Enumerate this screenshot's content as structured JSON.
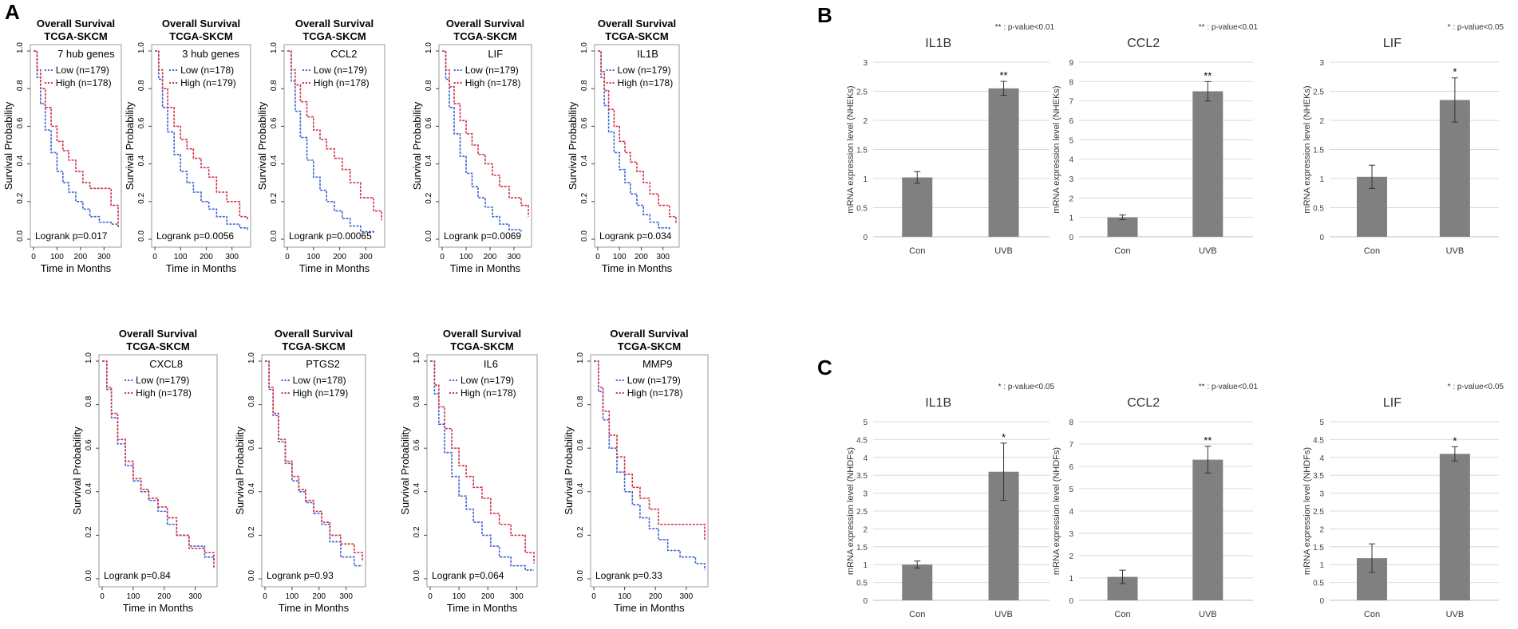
{
  "panel_labels": {
    "A": "A",
    "B": "B",
    "C": "C"
  },
  "colors": {
    "low": "#3c63d8",
    "high": "#d2314a",
    "bar": "#808080",
    "grid": "#d9d9d9"
  },
  "survival_common": {
    "title1": "Overall Survival",
    "title2": "TCGA-SKCM",
    "ylabel": "Survival Probability",
    "xlabel": "Time in Months",
    "yticks": [
      "0.0",
      "0.2",
      "0.4",
      "0.6",
      "0.8",
      "1.0"
    ],
    "xticks": [
      "0",
      "100",
      "200",
      "300"
    ]
  },
  "bar_common": {
    "categories": [
      "Con",
      "UVB"
    ],
    "ylabel_nheks": "mRNA expression level (NHEKs)",
    "ylabel_nhdfs": "mRNA expression level (NHDFs)"
  },
  "chart_data": [
    {
      "type": "line",
      "panel": "A",
      "title": "Overall Survival TCGA-SKCM",
      "gene": "7 hub genes",
      "legend_low": "Low (n=179)",
      "legend_high": "High (n=178)",
      "logrank": "Logrank p=0.017",
      "xlabel": "Time in Months",
      "ylabel": "Survival Probability",
      "xlim": [
        0,
        360
      ],
      "ylim": [
        0,
        1
      ],
      "series": [
        {
          "name": "Low",
          "times": [
            0,
            15,
            30,
            50,
            75,
            100,
            125,
            150,
            180,
            210,
            240,
            280,
            330,
            360
          ],
          "surv": [
            1.0,
            0.86,
            0.72,
            0.58,
            0.46,
            0.36,
            0.3,
            0.25,
            0.2,
            0.16,
            0.12,
            0.09,
            0.08,
            0.07
          ]
        },
        {
          "name": "High",
          "times": [
            0,
            15,
            30,
            50,
            75,
            100,
            125,
            150,
            180,
            210,
            240,
            280,
            330,
            360
          ],
          "surv": [
            1.0,
            0.9,
            0.8,
            0.7,
            0.6,
            0.52,
            0.47,
            0.42,
            0.36,
            0.3,
            0.27,
            0.27,
            0.18,
            0.06
          ]
        }
      ]
    },
    {
      "type": "line",
      "panel": "A",
      "title": "Overall Survival TCGA-SKCM",
      "gene": "3 hub genes",
      "legend_low": "Low (n=178)",
      "legend_high": "High (n=179)",
      "logrank": "Logrank p=0.0056",
      "xlabel": "Time in Months",
      "ylabel": "Survival Probability",
      "xlim": [
        0,
        360
      ],
      "ylim": [
        0,
        1
      ],
      "series": [
        {
          "name": "Low",
          "times": [
            0,
            15,
            30,
            50,
            75,
            100,
            125,
            150,
            180,
            210,
            240,
            280,
            330,
            360
          ],
          "surv": [
            1.0,
            0.85,
            0.7,
            0.57,
            0.45,
            0.36,
            0.3,
            0.25,
            0.2,
            0.16,
            0.12,
            0.08,
            0.06,
            0.05
          ]
        },
        {
          "name": "High",
          "times": [
            0,
            15,
            30,
            50,
            75,
            100,
            125,
            150,
            180,
            210,
            240,
            280,
            330,
            360
          ],
          "surv": [
            1.0,
            0.9,
            0.8,
            0.7,
            0.6,
            0.53,
            0.48,
            0.43,
            0.38,
            0.33,
            0.25,
            0.2,
            0.12,
            0.1
          ]
        }
      ]
    },
    {
      "type": "line",
      "panel": "A",
      "title": "Overall Survival TCGA-SKCM",
      "gene": "CCL2",
      "legend_low": "Low (n=179)",
      "legend_high": "High (n=178)",
      "logrank": "Logrank p=0.00065",
      "xlabel": "Time in Months",
      "ylabel": "Survival Probability",
      "xlim": [
        0,
        360
      ],
      "ylim": [
        0,
        1
      ],
      "series": [
        {
          "name": "Low",
          "times": [
            0,
            15,
            30,
            50,
            75,
            100,
            125,
            150,
            180,
            210,
            240,
            280,
            330
          ],
          "surv": [
            1.0,
            0.84,
            0.68,
            0.54,
            0.42,
            0.33,
            0.26,
            0.2,
            0.15,
            0.11,
            0.07,
            0.04,
            0.03
          ]
        },
        {
          "name": "High",
          "times": [
            0,
            15,
            30,
            50,
            75,
            100,
            125,
            150,
            180,
            210,
            240,
            280,
            330,
            360
          ],
          "surv": [
            1.0,
            0.9,
            0.82,
            0.73,
            0.65,
            0.58,
            0.53,
            0.48,
            0.43,
            0.37,
            0.3,
            0.22,
            0.15,
            0.1
          ]
        }
      ]
    },
    {
      "type": "line",
      "panel": "A",
      "title": "Overall Survival TCGA-SKCM",
      "gene": "LIF",
      "legend_low": "Low (n=179)",
      "legend_high": "High (n=178)",
      "logrank": "Logrank p=0.0069",
      "xlabel": "Time in Months",
      "ylabel": "Survival Probability",
      "xlim": [
        0,
        360
      ],
      "ylim": [
        0,
        1
      ],
      "series": [
        {
          "name": "Low",
          "times": [
            0,
            15,
            30,
            50,
            75,
            100,
            125,
            150,
            180,
            210,
            240,
            280,
            330
          ],
          "surv": [
            1.0,
            0.85,
            0.7,
            0.56,
            0.44,
            0.35,
            0.28,
            0.22,
            0.17,
            0.12,
            0.08,
            0.05,
            0.04
          ]
        },
        {
          "name": "High",
          "times": [
            0,
            15,
            30,
            50,
            75,
            100,
            125,
            150,
            180,
            210,
            240,
            280,
            330,
            360
          ],
          "surv": [
            1.0,
            0.9,
            0.81,
            0.72,
            0.63,
            0.56,
            0.5,
            0.45,
            0.4,
            0.34,
            0.28,
            0.22,
            0.18,
            0.12
          ]
        }
      ]
    },
    {
      "type": "line",
      "panel": "A",
      "title": "Overall Survival TCGA-SKCM",
      "gene": "IL1B",
      "legend_low": "Low (n=179)",
      "legend_high": "High (n=178)",
      "logrank": "Logrank p=0.034",
      "xlabel": "Time in Months",
      "ylabel": "Survival Probability",
      "xlim": [
        0,
        360
      ],
      "ylim": [
        0,
        1
      ],
      "series": [
        {
          "name": "Low",
          "times": [
            0,
            15,
            30,
            50,
            75,
            100,
            125,
            150,
            180,
            210,
            240,
            280,
            330
          ],
          "surv": [
            1.0,
            0.86,
            0.71,
            0.57,
            0.46,
            0.37,
            0.3,
            0.24,
            0.18,
            0.13,
            0.09,
            0.06,
            0.05
          ]
        },
        {
          "name": "High",
          "times": [
            0,
            15,
            30,
            50,
            75,
            100,
            125,
            150,
            180,
            210,
            240,
            280,
            330,
            360
          ],
          "surv": [
            1.0,
            0.89,
            0.79,
            0.69,
            0.6,
            0.52,
            0.46,
            0.41,
            0.36,
            0.3,
            0.24,
            0.18,
            0.12,
            0.08
          ]
        }
      ]
    },
    {
      "type": "line",
      "panel": "A",
      "title": "Overall Survival TCGA-SKCM",
      "gene": "CXCL8",
      "legend_low": "Low (n=179)",
      "legend_high": "High (n=178)",
      "logrank": "Logrank p=0.84",
      "xlabel": "Time in Months",
      "ylabel": "Survival Probability",
      "xlim": [
        0,
        360
      ],
      "ylim": [
        0,
        1
      ],
      "series": [
        {
          "name": "Low",
          "times": [
            0,
            15,
            30,
            50,
            75,
            100,
            125,
            150,
            180,
            210,
            240,
            280,
            330,
            360
          ],
          "surv": [
            1.0,
            0.87,
            0.74,
            0.62,
            0.52,
            0.45,
            0.4,
            0.36,
            0.31,
            0.25,
            0.2,
            0.15,
            0.1,
            0.08
          ]
        },
        {
          "name": "High",
          "times": [
            0,
            15,
            30,
            50,
            75,
            100,
            125,
            150,
            180,
            210,
            240,
            280,
            330,
            360
          ],
          "surv": [
            1.0,
            0.88,
            0.76,
            0.64,
            0.54,
            0.46,
            0.41,
            0.37,
            0.33,
            0.28,
            0.2,
            0.14,
            0.12,
            0.05
          ]
        }
      ]
    },
    {
      "type": "line",
      "panel": "A",
      "title": "Overall Survival TCGA-SKCM",
      "gene": "PTGS2",
      "legend_low": "Low (n=178)",
      "legend_high": "High (n=179)",
      "logrank": "Logrank p=0.93",
      "xlabel": "Time in Months",
      "ylabel": "Survival Probability",
      "xlim": [
        0,
        360
      ],
      "ylim": [
        0,
        1
      ],
      "series": [
        {
          "name": "Low",
          "times": [
            0,
            15,
            30,
            50,
            75,
            100,
            125,
            150,
            180,
            210,
            240,
            280,
            330,
            360
          ],
          "surv": [
            1.0,
            0.87,
            0.75,
            0.63,
            0.53,
            0.45,
            0.4,
            0.35,
            0.3,
            0.25,
            0.17,
            0.1,
            0.06,
            0.06
          ]
        },
        {
          "name": "High",
          "times": [
            0,
            15,
            30,
            50,
            75,
            100,
            125,
            150,
            180,
            210,
            240,
            280,
            330,
            360
          ],
          "surv": [
            1.0,
            0.88,
            0.76,
            0.64,
            0.54,
            0.47,
            0.41,
            0.36,
            0.31,
            0.26,
            0.2,
            0.16,
            0.12,
            0.08
          ]
        }
      ]
    },
    {
      "type": "line",
      "panel": "A",
      "title": "Overall Survival TCGA-SKCM",
      "gene": "IL6",
      "legend_low": "Low (n=179)",
      "legend_high": "High (n=178)",
      "logrank": "Logrank p=0.064",
      "xlabel": "Time in Months",
      "ylabel": "Survival Probability",
      "xlim": [
        0,
        360
      ],
      "ylim": [
        0,
        1
      ],
      "series": [
        {
          "name": "Low",
          "times": [
            0,
            15,
            30,
            50,
            75,
            100,
            125,
            150,
            180,
            210,
            240,
            280,
            330,
            360
          ],
          "surv": [
            1.0,
            0.85,
            0.71,
            0.58,
            0.47,
            0.38,
            0.32,
            0.26,
            0.2,
            0.15,
            0.1,
            0.06,
            0.04,
            0.04
          ]
        },
        {
          "name": "High",
          "times": [
            0,
            15,
            30,
            50,
            75,
            100,
            125,
            150,
            180,
            210,
            240,
            280,
            330,
            360
          ],
          "surv": [
            1.0,
            0.89,
            0.79,
            0.69,
            0.6,
            0.52,
            0.47,
            0.42,
            0.37,
            0.3,
            0.25,
            0.2,
            0.12,
            0.07
          ]
        }
      ]
    },
    {
      "type": "line",
      "panel": "A",
      "title": "Overall Survival TCGA-SKCM",
      "gene": "MMP9",
      "legend_low": "Low (n=179)",
      "legend_high": "High (n=178)",
      "logrank": "Logrank p=0.33",
      "xlabel": "Time in Months",
      "ylabel": "Survival Probability",
      "xlim": [
        0,
        360
      ],
      "ylim": [
        0,
        1
      ],
      "series": [
        {
          "name": "Low",
          "times": [
            0,
            15,
            30,
            50,
            75,
            100,
            125,
            150,
            180,
            210,
            240,
            280,
            330,
            360
          ],
          "surv": [
            1.0,
            0.86,
            0.73,
            0.6,
            0.49,
            0.4,
            0.34,
            0.28,
            0.23,
            0.18,
            0.13,
            0.1,
            0.07,
            0.04
          ]
        },
        {
          "name": "High",
          "times": [
            0,
            15,
            30,
            50,
            75,
            100,
            125,
            150,
            180,
            210,
            240,
            280,
            330,
            360
          ],
          "surv": [
            1.0,
            0.88,
            0.77,
            0.66,
            0.56,
            0.48,
            0.42,
            0.37,
            0.32,
            0.25,
            0.25,
            0.25,
            0.25,
            0.18
          ]
        }
      ]
    },
    {
      "type": "bar",
      "panel": "B",
      "gene": "IL1B",
      "categories": [
        "Con",
        "UVB"
      ],
      "values": [
        1.02,
        2.55
      ],
      "errors": [
        0.1,
        0.12
      ],
      "sig": [
        "",
        "**"
      ],
      "note": "** : p-value<0.01",
      "ylabel": "mRNA expression level (NHEKs)",
      "ylim": [
        0,
        3
      ],
      "yticks": [
        "0",
        "0.5",
        "1",
        "1.5",
        "2",
        "2.5",
        "3"
      ]
    },
    {
      "type": "bar",
      "panel": "B",
      "gene": "CCL2",
      "categories": [
        "Con",
        "UVB"
      ],
      "values": [
        1.0,
        7.5
      ],
      "errors": [
        0.12,
        0.5
      ],
      "sig": [
        "",
        "**"
      ],
      "note": "** : p-value<0.01",
      "ylabel": "mRNA expression level (NHEKs)",
      "ylim": [
        0,
        9
      ],
      "yticks": [
        "0",
        "1",
        "2",
        "3",
        "4",
        "5",
        "6",
        "7",
        "8",
        "9"
      ]
    },
    {
      "type": "bar",
      "panel": "B",
      "gene": "LIF",
      "categories": [
        "Con",
        "UVB"
      ],
      "values": [
        1.03,
        2.35
      ],
      "errors": [
        0.2,
        0.38
      ],
      "sig": [
        "",
        "*"
      ],
      "note": "* : p-value<0.05",
      "ylabel": "mRNA expression level (NHEKs)",
      "ylim": [
        0,
        3
      ],
      "yticks": [
        "0",
        "0.5",
        "1",
        "1.5",
        "2",
        "2.5",
        "3"
      ]
    },
    {
      "type": "bar",
      "panel": "C",
      "gene": "IL1B",
      "categories": [
        "Con",
        "UVB"
      ],
      "values": [
        1.0,
        3.6
      ],
      "errors": [
        0.1,
        0.8
      ],
      "sig": [
        "",
        "*"
      ],
      "note": "* : p-value<0.05",
      "ylabel": "mRNA expression level (NHDFs)",
      "ylim": [
        0,
        5
      ],
      "yticks": [
        "0",
        "0.5",
        "1",
        "1.5",
        "2",
        "2.5",
        "3",
        "3.5",
        "4",
        "4.5",
        "5"
      ]
    },
    {
      "type": "bar",
      "panel": "C",
      "gene": "CCL2",
      "categories": [
        "Con",
        "UVB"
      ],
      "values": [
        1.05,
        6.3
      ],
      "errors": [
        0.3,
        0.6
      ],
      "sig": [
        "",
        "**"
      ],
      "note": "** : p-value<0.01",
      "ylabel": "mRNA expression level (NHDFs)",
      "ylim": [
        0,
        8
      ],
      "yticks": [
        "0",
        "1",
        "2",
        "3",
        "4",
        "5",
        "6",
        "7",
        "8"
      ]
    },
    {
      "type": "bar",
      "panel": "C",
      "gene": "LIF",
      "categories": [
        "Con",
        "UVB"
      ],
      "values": [
        1.18,
        4.1
      ],
      "errors": [
        0.4,
        0.2
      ],
      "sig": [
        "",
        "*"
      ],
      "note": "* : p-value<0.05",
      "ylabel": "mRNA expression level (NHDFs)",
      "ylim": [
        0,
        5
      ],
      "yticks": [
        "0",
        "0.5",
        "1",
        "1.5",
        "2",
        "2.5",
        "3",
        "3.5",
        "4",
        "4.5",
        "5"
      ]
    }
  ]
}
